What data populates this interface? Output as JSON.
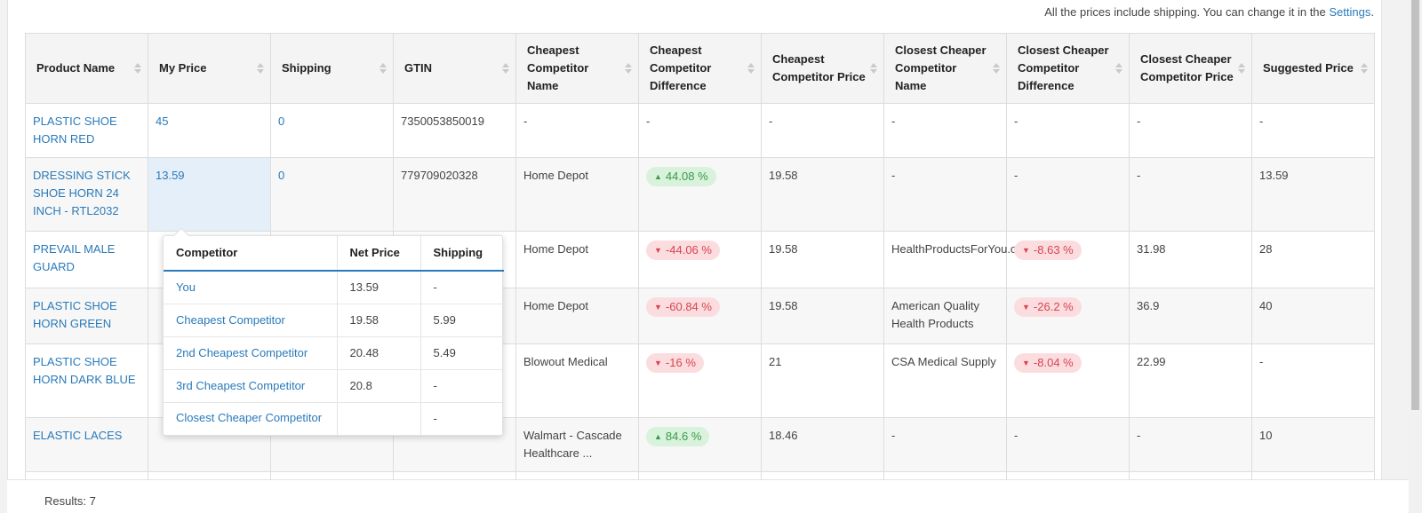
{
  "note": {
    "text": "All the prices include shipping. You can change it in the ",
    "link": "Settings",
    "suffix": "."
  },
  "columns": [
    "Product Name",
    "My Price",
    "Shipping",
    "GTIN",
    "Cheapest Competitor Name",
    "Cheapest Competitor Difference",
    "Cheapest Competitor Price",
    "Closest Cheaper Competitor Name",
    "Closest Cheaper Competitor Difference",
    "Closest Cheaper Competitor Price",
    "Suggested Price"
  ],
  "rows": [
    {
      "name": "PLASTIC SHOE HORN RED",
      "price": "45",
      "shipping": "0",
      "gtin": "7350053850019",
      "cheap_name": "-",
      "cheap_diff": "-",
      "cheap_price": "-",
      "close_name": "-",
      "close_diff": "-",
      "close_price": "-",
      "suggested": "-"
    },
    {
      "name": "DRESSING STICK SHOE HORN 24 INCH - RTL2032",
      "price": "13.59",
      "shipping": "0",
      "gtin": "779709020328",
      "cheap_name": "Home Depot",
      "cheap_diff": "44.08 %",
      "cheap_price": "19.58",
      "close_name": "-",
      "close_diff": "-",
      "close_price": "-",
      "suggested": "13.59"
    },
    {
      "name": "PREVAIL MALE GUARD",
      "cheap_name": "Home Depot",
      "cheap_diff": "-44.06 %",
      "cheap_price": "19.58",
      "close_name": "HealthProductsForYou.com",
      "close_diff": "-8.63 %",
      "close_price": "31.98",
      "suggested": "28"
    },
    {
      "name": "PLASTIC SHOE HORN GREEN",
      "cheap_name": "Home Depot",
      "cheap_diff": "-60.84 %",
      "cheap_price": "19.58",
      "close_name": "American Quality Health Products",
      "close_diff": "-26.2 %",
      "close_price": "36.9",
      "suggested": "40"
    },
    {
      "name": "PLASTIC SHOE HORN DARK BLUE",
      "cheap_name": "Blowout Medical",
      "cheap_diff": "-16 %",
      "cheap_price": "21",
      "close_name": "CSA Medical Supply",
      "close_diff": "-8.04 %",
      "close_price": "22.99",
      "suggested": "-"
    },
    {
      "name": "ELASTIC LACES",
      "cheap_name": "Walmart - Cascade Healthcare ...",
      "cheap_diff": "84.6 %",
      "cheap_price": "18.46",
      "close_name": "-",
      "close_diff": "-",
      "close_price": "-",
      "suggested": "10"
    }
  ],
  "popover": {
    "headers": [
      "Competitor",
      "Net Price",
      "Shipping"
    ],
    "rows": [
      {
        "label": "You",
        "net": "13.59",
        "ship": "-"
      },
      {
        "label": "Cheapest Competitor",
        "net": "19.58",
        "ship": "5.99"
      },
      {
        "label": "2nd Cheapest Competitor",
        "net": "20.48",
        "ship": "5.49"
      },
      {
        "label": "3rd Cheapest Competitor",
        "net": "20.8",
        "ship": "-"
      },
      {
        "label": "Closest Cheaper Competitor",
        "net": "",
        "ship": "-"
      }
    ]
  },
  "footer": {
    "results": "Results: 7"
  },
  "colors": {
    "link": "#2a7ab9",
    "up": "#3a9a4a",
    "down": "#d9434f"
  }
}
